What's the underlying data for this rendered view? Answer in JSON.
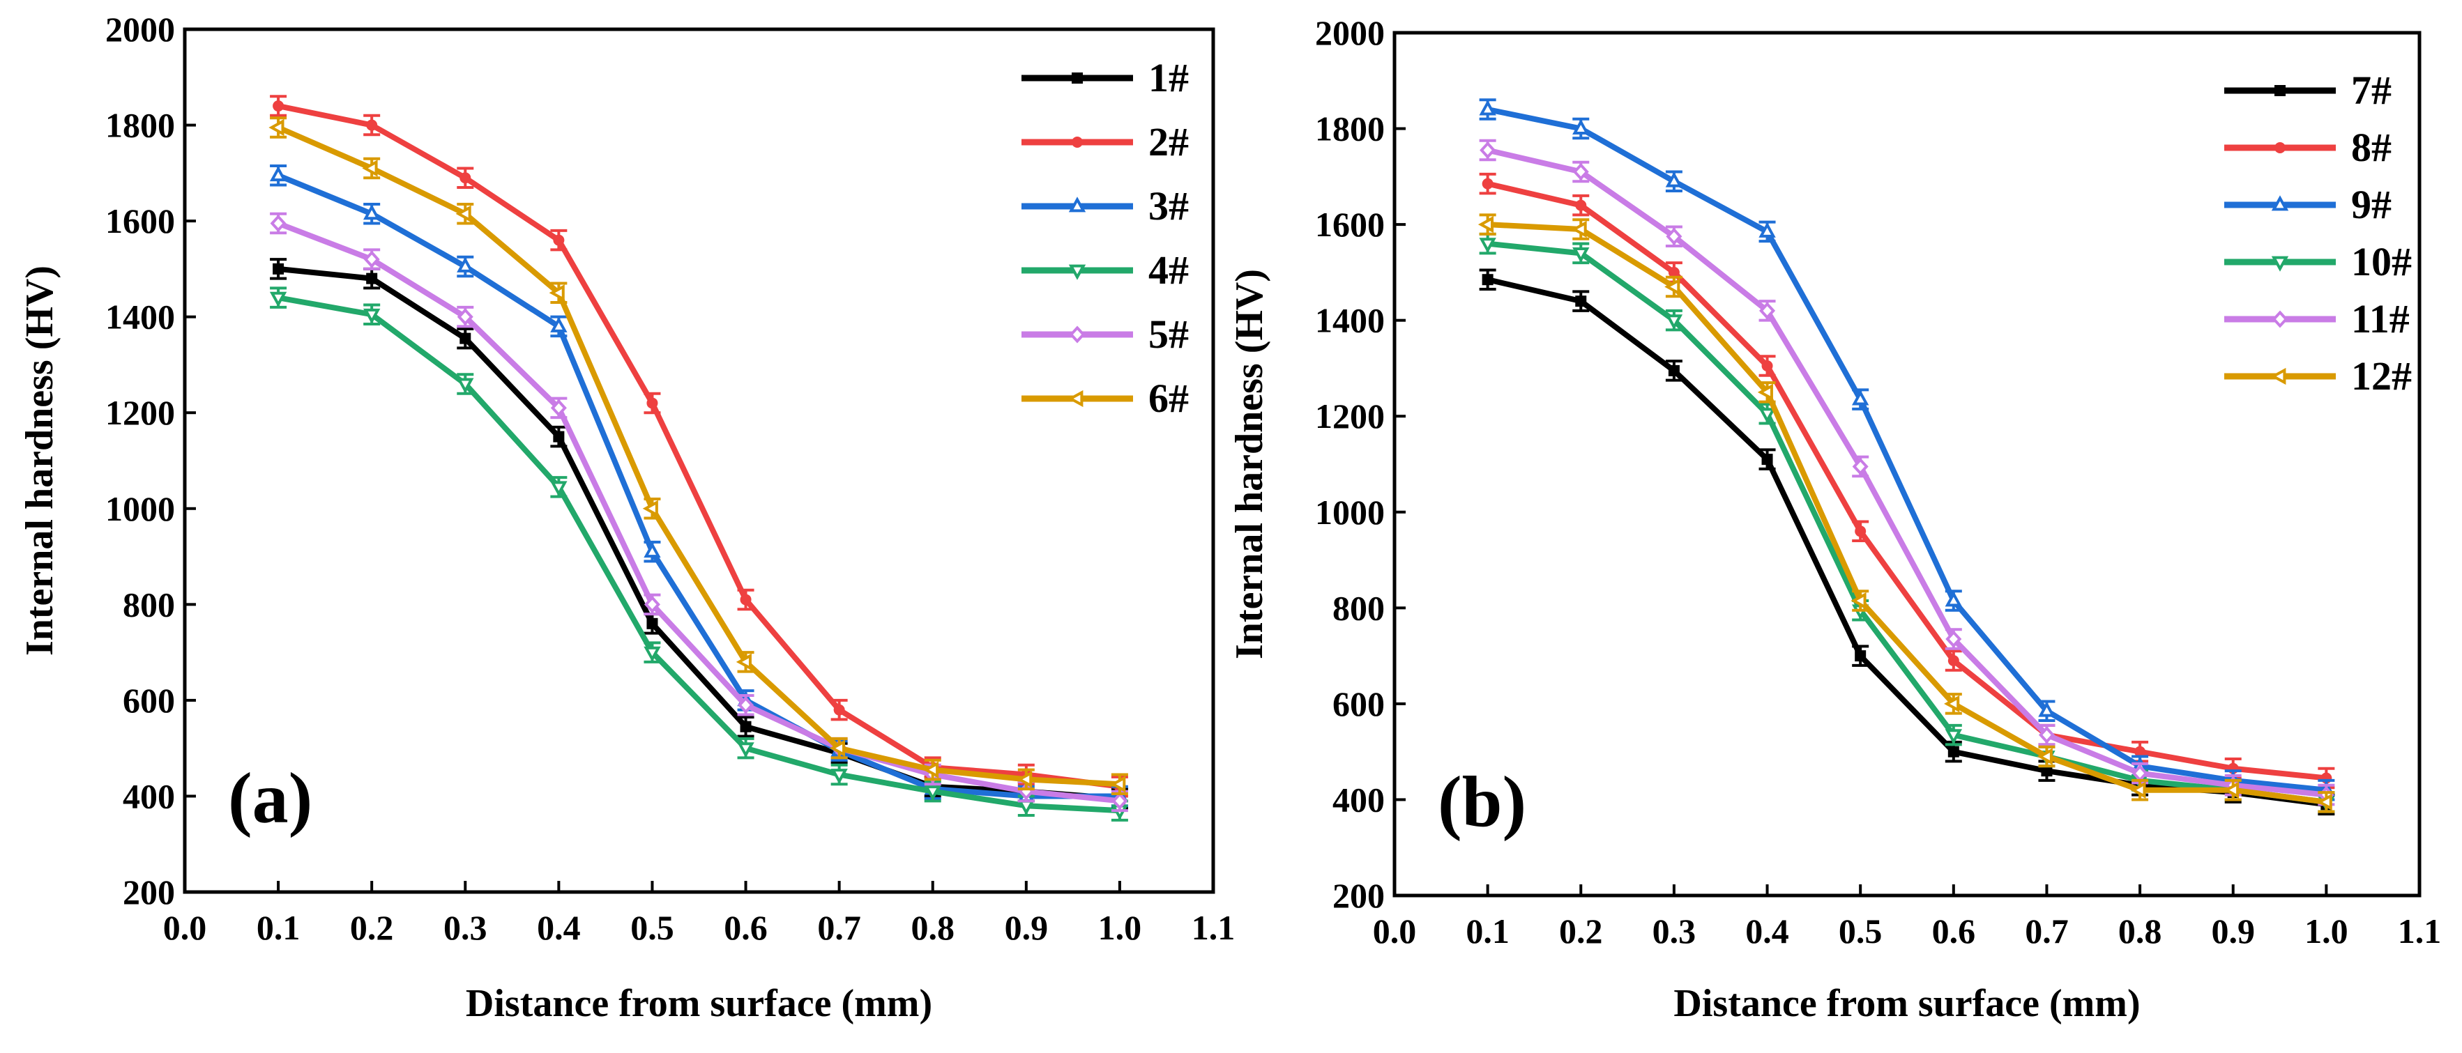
{
  "chart_data": [
    {
      "type": "line",
      "panel_label": "(a)",
      "xlabel": "Distance from surface (mm)",
      "ylabel": "Internal hardness (HV)",
      "xlim": [
        0.0,
        1.1
      ],
      "ylim": [
        200,
        2000
      ],
      "xticks": [
        0.0,
        0.1,
        0.2,
        0.3,
        0.4,
        0.5,
        0.6,
        0.7,
        0.8,
        0.9,
        1.0,
        1.1
      ],
      "xtick_labels": [
        "0.0",
        "0.1",
        "0.2",
        "0.3",
        "0.4",
        "0.5",
        "0.6",
        "0.7",
        "0.8",
        "0.9",
        "1.0",
        "1.1"
      ],
      "yticks": [
        200,
        400,
        600,
        800,
        1000,
        1200,
        1400,
        1600,
        1800,
        2000
      ],
      "ytick_labels": [
        "200",
        "400",
        "600",
        "800",
        "1000",
        "1200",
        "1400",
        "1600",
        "1800",
        "2000"
      ],
      "legend_position": "top-right",
      "x": [
        0.1,
        0.2,
        0.3,
        0.4,
        0.5,
        0.6,
        0.7,
        0.8,
        0.9,
        1.0
      ],
      "series": [
        {
          "name": "1#",
          "color": "#000000",
          "marker": "square",
          "values": [
            1500,
            1480,
            1355,
            1150,
            760,
            545,
            490,
            420,
            410,
            395
          ],
          "error": 20
        },
        {
          "name": "2#",
          "color": "#ee4040",
          "marker": "circle",
          "values": [
            1840,
            1800,
            1690,
            1560,
            1220,
            810,
            580,
            460,
            445,
            420
          ],
          "error": 20
        },
        {
          "name": "3#",
          "color": "#1f6fd6",
          "marker": "triangle-up",
          "values": [
            1695,
            1615,
            1505,
            1380,
            910,
            600,
            495,
            415,
            400,
            400
          ],
          "error": 20
        },
        {
          "name": "4#",
          "color": "#22a86a",
          "marker": "triangle-down",
          "values": [
            1440,
            1405,
            1260,
            1045,
            700,
            500,
            445,
            410,
            380,
            370
          ],
          "error": 20
        },
        {
          "name": "5#",
          "color": "#c97ce6",
          "marker": "diamond",
          "values": [
            1595,
            1520,
            1400,
            1210,
            800,
            590,
            500,
            445,
            410,
            390
          ],
          "error": 20
        },
        {
          "name": "6#",
          "color": "#d99a00",
          "marker": "triangle-left",
          "values": [
            1795,
            1710,
            1615,
            1450,
            1000,
            680,
            500,
            455,
            435,
            425
          ],
          "error": 20
        }
      ]
    },
    {
      "type": "line",
      "panel_label": "(b)",
      "xlabel": "Distance from surface (mm)",
      "ylabel": "Internal hardness (HV)",
      "xlim": [
        0.0,
        1.1
      ],
      "ylim": [
        200,
        2000
      ],
      "xticks": [
        0.0,
        0.1,
        0.2,
        0.3,
        0.4,
        0.5,
        0.6,
        0.7,
        0.8,
        0.9,
        1.0,
        1.1
      ],
      "xtick_labels": [
        "0.0",
        "0.1",
        "0.2",
        "0.3",
        "0.4",
        "0.5",
        "0.6",
        "0.7",
        "0.8",
        "0.9",
        "1.0",
        "1.1"
      ],
      "yticks": [
        200,
        400,
        600,
        800,
        1000,
        1200,
        1400,
        1600,
        1800,
        2000
      ],
      "ytick_labels": [
        "200",
        "400",
        "600",
        "800",
        "1000",
        "1200",
        "1400",
        "1600",
        "1800",
        "2000"
      ],
      "legend_position": "top-right",
      "x": [
        0.1,
        0.2,
        0.3,
        0.4,
        0.5,
        0.6,
        0.7,
        0.8,
        0.9,
        1.0
      ],
      "series": [
        {
          "name": "7#",
          "color": "#000000",
          "marker": "square",
          "values": [
            1485,
            1440,
            1295,
            1110,
            700,
            500,
            460,
            430,
            415,
            390
          ],
          "error": 20
        },
        {
          "name": "8#",
          "color": "#ee4040",
          "marker": "circle",
          "values": [
            1685,
            1640,
            1500,
            1305,
            960,
            690,
            535,
            500,
            465,
            445
          ],
          "error": 20
        },
        {
          "name": "9#",
          "color": "#1f6fd6",
          "marker": "triangle-up",
          "values": [
            1840,
            1800,
            1690,
            1585,
            1235,
            815,
            585,
            470,
            440,
            420
          ],
          "error": 20
        },
        {
          "name": "10#",
          "color": "#22a86a",
          "marker": "triangle-down",
          "values": [
            1560,
            1540,
            1400,
            1205,
            795,
            535,
            490,
            440,
            420,
            395
          ],
          "error": 20
        },
        {
          "name": "11#",
          "color": "#c97ce6",
          "marker": "diamond",
          "values": [
            1755,
            1710,
            1575,
            1420,
            1095,
            735,
            535,
            455,
            430,
            410
          ],
          "error": 20
        },
        {
          "name": "12#",
          "color": "#d99a00",
          "marker": "triangle-left",
          "values": [
            1600,
            1590,
            1470,
            1250,
            815,
            600,
            490,
            420,
            420,
            395
          ],
          "error": 20
        }
      ]
    }
  ]
}
